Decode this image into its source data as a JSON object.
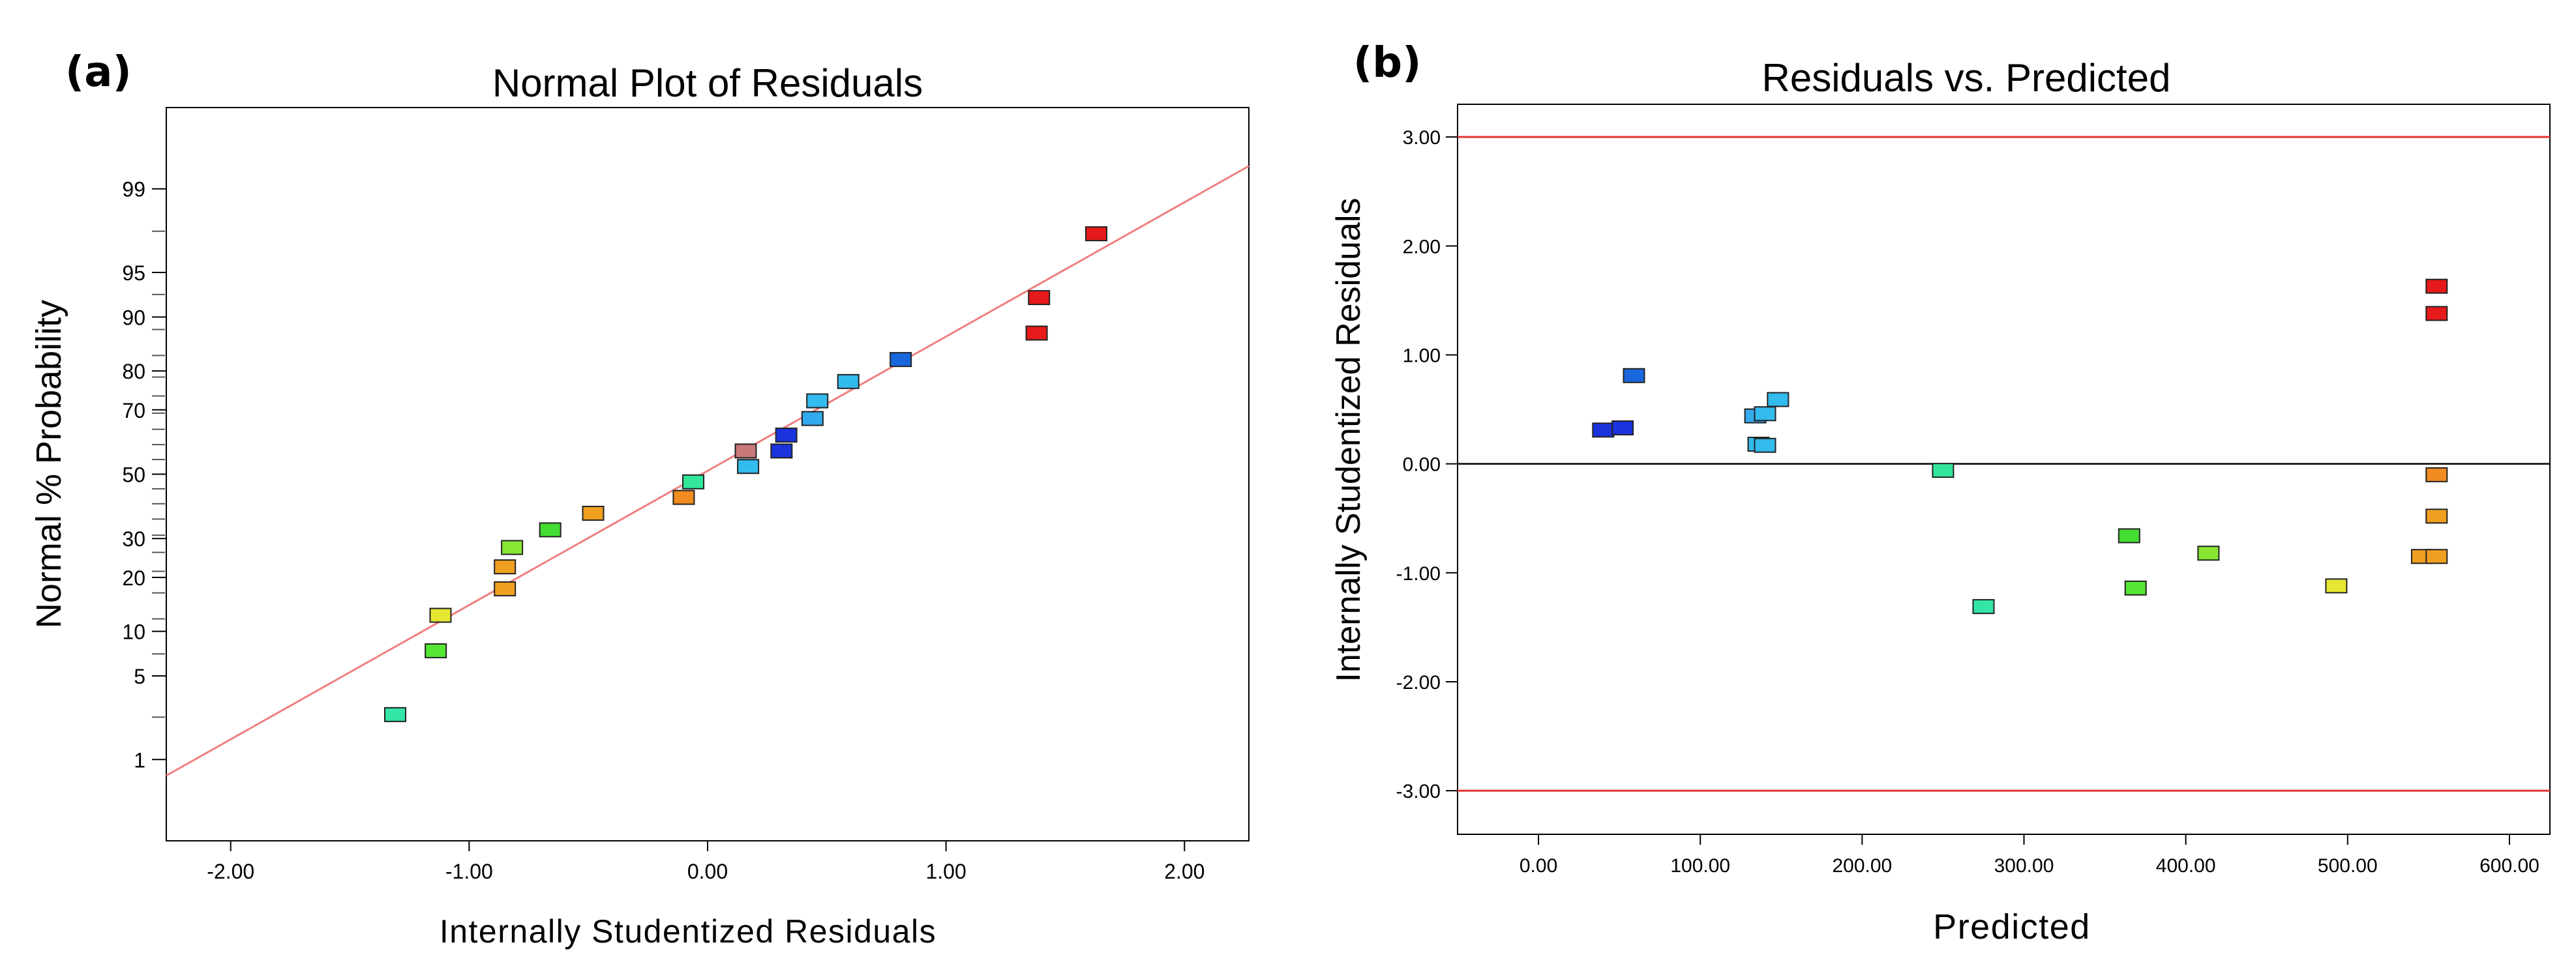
{
  "chart_data": [
    {
      "type": "scatter",
      "panel_label": "(a)",
      "title": "Normal Plot of Residuals",
      "xlabel": "Internally Studentized Residuals",
      "ylabel": "Normal % Probability",
      "xlim": [
        -2.27,
        2.27
      ],
      "ylim": [
        0.14,
        99.86
      ],
      "y_scale": "normal-probability",
      "grid": false,
      "legend": "none",
      "x_ticks": [
        -2.0,
        -1.0,
        0.0,
        1.0,
        2.0
      ],
      "x_tick_labels": [
        "-2.00",
        "-1.00",
        "0.00",
        "1.00",
        "2.00"
      ],
      "y_ticks": [
        1,
        5,
        10,
        20,
        30,
        50,
        70,
        80,
        90,
        95,
        99
      ],
      "y_tick_labels": [
        "1",
        "5",
        "10",
        "20",
        "30",
        "50",
        "70",
        "80",
        "90",
        "95",
        "99"
      ],
      "reference_line": {
        "color": "#f08080",
        "points": [
          [
            -2.27,
            0.7
          ],
          [
            2.27,
            99.4
          ]
        ]
      },
      "points": [
        {
          "x": -1.31,
          "y": 2.5,
          "color": "#33e6a6"
        },
        {
          "x": -1.14,
          "y": 7.5,
          "color": "#55e633"
        },
        {
          "x": -1.12,
          "y": 12.5,
          "color": "#e6e633"
        },
        {
          "x": -0.85,
          "y": 17.5,
          "color": "#f0a020"
        },
        {
          "x": -0.85,
          "y": 22.5,
          "color": "#f0a020"
        },
        {
          "x": -0.82,
          "y": 27.5,
          "color": "#88e633"
        },
        {
          "x": -0.66,
          "y": 32.5,
          "color": "#44dd33"
        },
        {
          "x": -0.48,
          "y": 37.5,
          "color": "#f0a020"
        },
        {
          "x": -0.1,
          "y": 42.5,
          "color": "#f08c20"
        },
        {
          "x": -0.06,
          "y": 47.5,
          "color": "#33e699"
        },
        {
          "x": 0.17,
          "y": 52.5,
          "color": "#33bbee"
        },
        {
          "x": 0.16,
          "y": 57.5,
          "color": "#c87878"
        },
        {
          "x": 0.31,
          "y": 57.5,
          "color": "#1a33dd"
        },
        {
          "x": 0.33,
          "y": 62.5,
          "color": "#1a33dd"
        },
        {
          "x": 0.44,
          "y": 67.5,
          "color": "#33aaee"
        },
        {
          "x": 0.46,
          "y": 72.5,
          "color": "#33bbee"
        },
        {
          "x": 0.59,
          "y": 77.5,
          "color": "#33bbee"
        },
        {
          "x": 0.81,
          "y": 82.5,
          "color": "#1a66dd"
        },
        {
          "x": 1.38,
          "y": 87.5,
          "color": "#e61a1a"
        },
        {
          "x": 1.39,
          "y": 92.5,
          "color": "#e61a1a"
        },
        {
          "x": 1.63,
          "y": 97.5,
          "color": "#e61a1a"
        }
      ]
    },
    {
      "type": "scatter",
      "panel_label": "(b)",
      "title": "Residuals vs. Predicted",
      "xlabel": "Predicted",
      "ylabel": "Internally Studentized Residuals",
      "xlim": [
        -50,
        625
      ],
      "ylim": [
        -3.4,
        3.3
      ],
      "grid": false,
      "legend": "none",
      "x_ticks": [
        0,
        100,
        200,
        300,
        400,
        500,
        600
      ],
      "x_tick_labels": [
        "0.00",
        "100.00",
        "200.00",
        "300.00",
        "400.00",
        "500.00",
        "600.00"
      ],
      "y_ticks": [
        -3,
        -2,
        -1,
        0,
        1,
        2,
        3
      ],
      "y_tick_labels": [
        "-3.00",
        "-2.00",
        "-1.00",
        "0.00",
        "1.00",
        "2.00",
        "3.00"
      ],
      "reference_lines": [
        {
          "y": 3.0,
          "color": "#e63333"
        },
        {
          "y": 0.0,
          "color": "#000000"
        },
        {
          "y": -3.0,
          "color": "#e63333"
        }
      ],
      "points": [
        {
          "x": 40,
          "y": 0.31,
          "color": "#1a33dd"
        },
        {
          "x": 52,
          "y": 0.33,
          "color": "#1a33dd"
        },
        {
          "x": 59,
          "y": 0.81,
          "color": "#1a66dd"
        },
        {
          "x": 134,
          "y": 0.44,
          "color": "#33aaee"
        },
        {
          "x": 140,
          "y": 0.46,
          "color": "#33bbee"
        },
        {
          "x": 148,
          "y": 0.59,
          "color": "#33bbee"
        },
        {
          "x": 136,
          "y": 0.18,
          "color": "#33bbee"
        },
        {
          "x": 140,
          "y": 0.17,
          "color": "#33bbee"
        },
        {
          "x": 250,
          "y": -0.06,
          "color": "#33e699"
        },
        {
          "x": 275,
          "y": -1.31,
          "color": "#33e6a6"
        },
        {
          "x": 365,
          "y": -0.66,
          "color": "#44dd33"
        },
        {
          "x": 369,
          "y": -1.14,
          "color": "#55e633"
        },
        {
          "x": 414,
          "y": -0.82,
          "color": "#88e633"
        },
        {
          "x": 493,
          "y": -1.12,
          "color": "#e6e633"
        },
        {
          "x": 546,
          "y": -0.85,
          "color": "#f0a020"
        },
        {
          "x": 555,
          "y": -0.85,
          "color": "#f0a020"
        },
        {
          "x": 555,
          "y": -0.48,
          "color": "#f0a020"
        },
        {
          "x": 555,
          "y": -0.1,
          "color": "#f08c20"
        },
        {
          "x": 555,
          "y": 1.38,
          "color": "#e61a1a"
        },
        {
          "x": 555,
          "y": 1.63,
          "color": "#e61a1a"
        }
      ]
    }
  ]
}
